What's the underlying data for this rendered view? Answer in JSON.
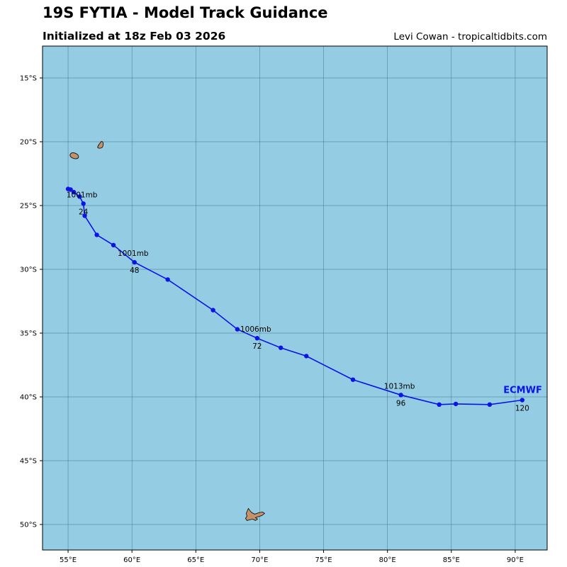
{
  "header": {
    "title": "19S FYTIA - Model Track Guidance",
    "subtitle": "Initialized at 18z Feb 03 2026",
    "credit": "Levi Cowan - tropicaltidbits.com"
  },
  "colors": {
    "ocean": "#94cde3",
    "land": "#c4926a",
    "track": "#0a14e6",
    "grid": "#3f6b7a"
  },
  "chart_data": {
    "type": "map-track",
    "lon_range": [
      53,
      92.5
    ],
    "lat_range": [
      -52,
      -12.5
    ],
    "x_ticks": [
      {
        "value": 55,
        "label": "55°E"
      },
      {
        "value": 60,
        "label": "60°E"
      },
      {
        "value": 65,
        "label": "65°E"
      },
      {
        "value": 70,
        "label": "70°E"
      },
      {
        "value": 75,
        "label": "75°E"
      },
      {
        "value": 80,
        "label": "80°E"
      },
      {
        "value": 85,
        "label": "85°E"
      },
      {
        "value": 90,
        "label": "90°E"
      }
    ],
    "y_ticks": [
      {
        "value": -15,
        "label": "15°S"
      },
      {
        "value": -20,
        "label": "20°S"
      },
      {
        "value": -25,
        "label": "25°S"
      },
      {
        "value": -30,
        "label": "30°S"
      },
      {
        "value": -35,
        "label": "35°S"
      },
      {
        "value": -40,
        "label": "40°S"
      },
      {
        "value": -45,
        "label": "45°S"
      },
      {
        "value": -50,
        "label": "50°S"
      }
    ],
    "model": {
      "name": "ECMWF",
      "track": [
        {
          "lon": 55.0,
          "lat": -23.7
        },
        {
          "lon": 55.2,
          "lat": -23.75
        },
        {
          "lon": 55.45,
          "lat": -23.95
        },
        {
          "lon": 55.9,
          "lat": -24.3
        },
        {
          "lon": 56.2,
          "lat": -24.85
        },
        {
          "lon": 56.3,
          "lat": -25.8
        },
        {
          "lon": 57.25,
          "lat": -27.3
        },
        {
          "lon": 58.55,
          "lat": -28.1
        },
        {
          "lon": 60.2,
          "lat": -29.45
        },
        {
          "lon": 62.8,
          "lat": -30.8
        },
        {
          "lon": 66.35,
          "lat": -33.2
        },
        {
          "lon": 68.25,
          "lat": -34.7
        },
        {
          "lon": 69.8,
          "lat": -35.4
        },
        {
          "lon": 71.65,
          "lat": -36.15
        },
        {
          "lon": 73.65,
          "lat": -36.8
        },
        {
          "lon": 77.3,
          "lat": -38.65
        },
        {
          "lon": 81.05,
          "lat": -39.85
        },
        {
          "lon": 84.05,
          "lat": -40.6
        },
        {
          "lon": 85.35,
          "lat": -40.55
        },
        {
          "lon": 88.0,
          "lat": -40.6
        },
        {
          "lon": 90.55,
          "lat": -40.25
        }
      ],
      "annotations": [
        {
          "hour": "24",
          "pressure": "1001mb",
          "lon": 56.2,
          "lat": -24.85
        },
        {
          "hour": "48",
          "pressure": "1001mb",
          "lon": 60.2,
          "lat": -29.45
        },
        {
          "hour": "72",
          "pressure": "1006mb",
          "lon": 69.8,
          "lat": -35.4
        },
        {
          "hour": "96",
          "pressure": "1013mb",
          "lon": 81.05,
          "lat": -39.85
        },
        {
          "hour": "120",
          "pressure": "",
          "lon": 90.55,
          "lat": -40.25
        }
      ]
    },
    "islands": [
      {
        "name": "Reunion",
        "center": [
          55.5,
          -21.1
        ]
      },
      {
        "name": "Mauritius",
        "center": [
          57.55,
          -20.25
        ]
      },
      {
        "name": "Kerguelen",
        "center": [
          69.5,
          -49.3
        ]
      }
    ]
  }
}
